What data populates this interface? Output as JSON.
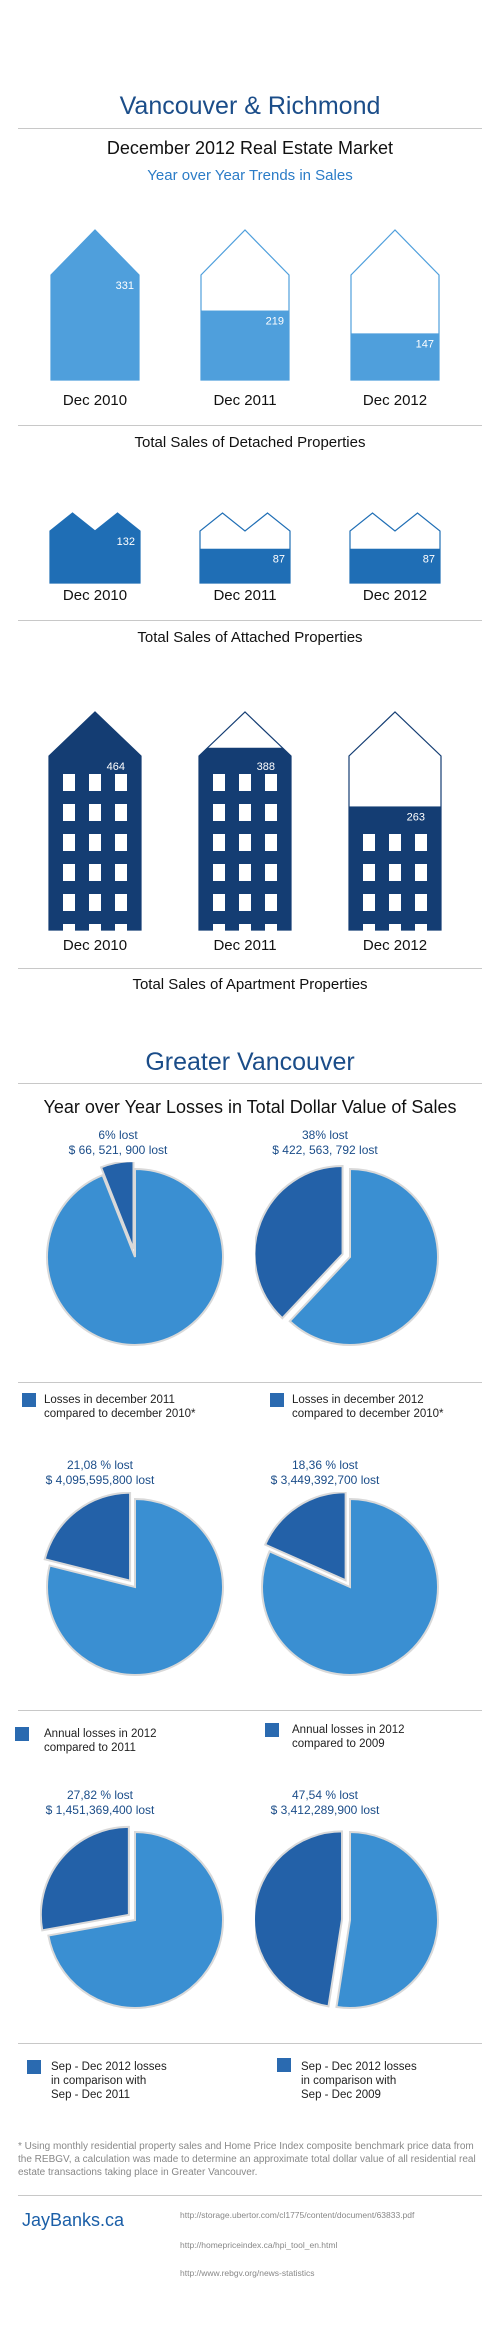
{
  "header": {
    "title": "Vancouver & Richmond",
    "subtitle": "December 2012 Real Estate Market",
    "blue_subtitle": "Year over Year Trends in Sales"
  },
  "colors": {
    "detached": "#4f9fdc",
    "attached": "#1f6eb5",
    "apartment": "#143d73",
    "pie_light": "#3a8fd2",
    "pie_dark": "#2361a8"
  },
  "chart_data": [
    {
      "type": "bar",
      "title": "Total Sales of Detached Properties",
      "categories": [
        "Dec 2010",
        "Dec 2011",
        "Dec 2012"
      ],
      "values": [
        331,
        219,
        147
      ],
      "ylim": [
        0,
        331
      ]
    },
    {
      "type": "bar",
      "title": "Total Sales of Attached Properties",
      "categories": [
        "Dec 2010",
        "Dec 2011",
        "Dec 2012"
      ],
      "values": [
        132,
        87,
        87
      ],
      "ylim": [
        0,
        132
      ]
    },
    {
      "type": "bar",
      "title": "Total Sales of Apartment Properties",
      "categories": [
        "Dec 2010",
        "Dec 2011",
        "Dec 2012"
      ],
      "values": [
        464,
        388,
        263
      ],
      "ylim": [
        0,
        464
      ]
    },
    {
      "type": "pie",
      "pies": [
        {
          "percent_label": "6% lost",
          "amount_label": "$ 66, 521, 900 lost",
          "lost_fraction": 0.06,
          "legend": [
            "Losses in december 2011",
            "compared to december 2010*"
          ]
        },
        {
          "percent_label": "38% lost",
          "amount_label": "$ 422, 563, 792 lost",
          "lost_fraction": 0.38,
          "legend": [
            "Losses in december 2012",
            "compared to december 2010*"
          ]
        },
        {
          "percent_label": "21,08 % lost",
          "amount_label": "$ 4,095,595,800 lost",
          "lost_fraction": 0.2108,
          "legend": [
            "Annual losses in 2012",
            "compared to 2011"
          ]
        },
        {
          "percent_label": "18,36 % lost",
          "amount_label": "$ 3,449,392,700 lost",
          "lost_fraction": 0.1836,
          "legend": [
            "Annual losses in 2012",
            "compared to 2009"
          ]
        },
        {
          "percent_label": "27,82 % lost",
          "amount_label": "$ 1,451,369,400 lost",
          "lost_fraction": 0.2782,
          "legend": [
            "Sep - Dec 2012 losses",
            "in comparison with",
            "Sep - Dec 2011"
          ]
        },
        {
          "percent_label": "47,54 % lost",
          "amount_label": "$ 3,412,289,900 lost",
          "lost_fraction": 0.4754,
          "legend": [
            "Sep - Dec 2012 losses",
            "in comparison with",
            "Sep - Dec 2009"
          ]
        }
      ]
    }
  ],
  "greater": {
    "title": "Greater Vancouver",
    "subtitle": "Year over Year Losses in Total Dollar Value of Sales"
  },
  "footnote": "* Using monthly residential property sales and Home Price Index composite benchmark price data from the REBGV, a calculation was made to determine an approximate total dollar value of all residential real estate transactions taking place in Greater Vancouver.",
  "footer": {
    "brand": "JayBanks.ca",
    "sources": [
      "http://storage.ubertor.com/cl1775/content/document/63833.pdf",
      "http://homepriceindex.ca/hpi_tool_en.html",
      "http://www.rebgv.org/news-statistics"
    ]
  }
}
